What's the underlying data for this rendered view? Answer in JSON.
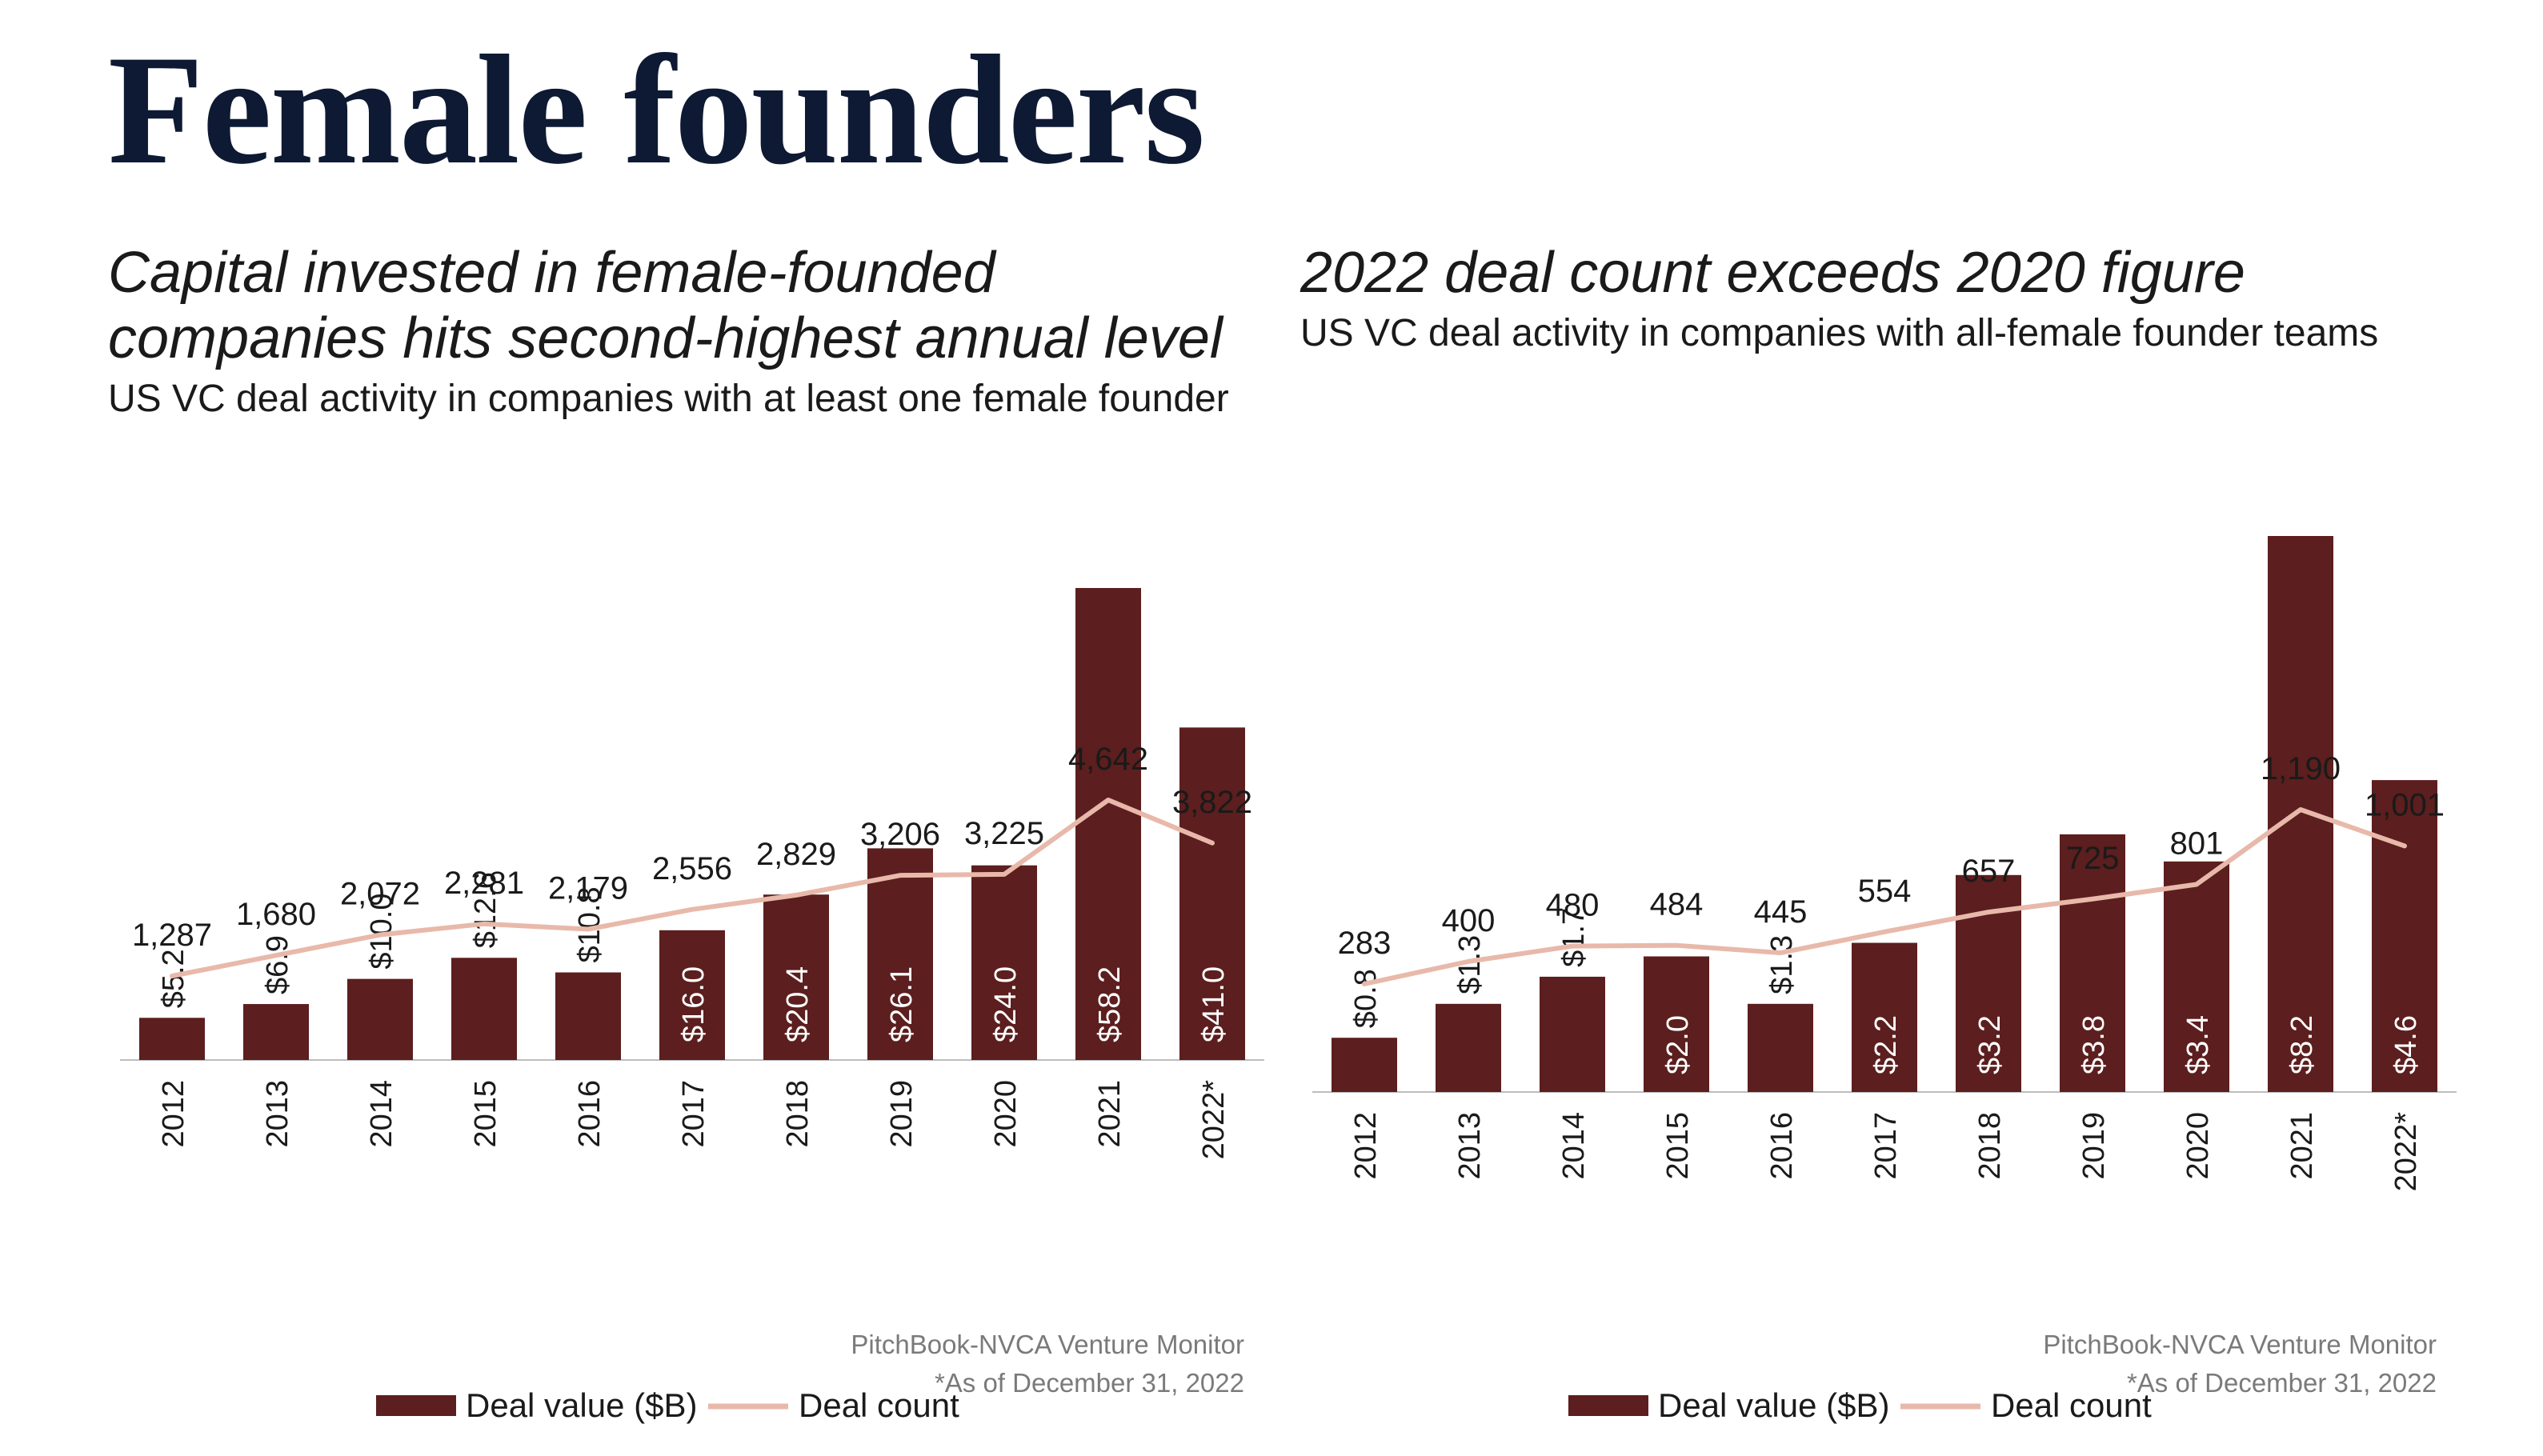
{
  "page": {
    "title": "Female founders"
  },
  "colors": {
    "bar": "#5c1e1e",
    "line": "#e8b9aa",
    "text": "#1a1a1a",
    "title": "#0e1a33",
    "axis": "#bdbdbd"
  },
  "chart_data": [
    {
      "type": "bar",
      "title": "Capital invested in female-founded companies hits second-highest annual level",
      "subtitle": "US VC deal activity in companies with at least one female founder",
      "categories": [
        "2012",
        "2013",
        "2014",
        "2015",
        "2016",
        "2017",
        "2018",
        "2019",
        "2020",
        "2021",
        "2022*"
      ],
      "series": [
        {
          "name": "Deal value ($B)",
          "type": "bar",
          "values": [
            5.2,
            6.9,
            10.0,
            12.6,
            10.8,
            16.0,
            20.4,
            26.1,
            24.0,
            58.2,
            41.0
          ],
          "labels": [
            "$5.2",
            "$6.9",
            "$10.0",
            "$12.6",
            "$10.8",
            "$16.0",
            "$20.4",
            "$26.1",
            "$24.0",
            "$58.2",
            "$41.0"
          ]
        },
        {
          "name": "Deal count",
          "type": "line",
          "values": [
            1287,
            1680,
            2072,
            2281,
            2179,
            2556,
            2829,
            3206,
            3225,
            4642,
            3822
          ],
          "labels": [
            "1,287",
            "1,680",
            "2,072",
            "2,281",
            "2,179",
            "2,556",
            "2,829",
            "3,206",
            "3,225",
            "4,642",
            "3,822"
          ]
        }
      ],
      "legend": [
        "Deal value ($B)",
        "Deal count"
      ],
      "source": "PitchBook-NVCA Venture Monitor",
      "note": "*As of December 31, 2022"
    },
    {
      "type": "bar",
      "title": "2022 deal count exceeds 2020 figure",
      "subtitle": "US VC deal activity in companies with all-female founder teams",
      "categories": [
        "2012",
        "2013",
        "2014",
        "2015",
        "2016",
        "2017",
        "2018",
        "2019",
        "2020",
        "2021",
        "2022*"
      ],
      "series": [
        {
          "name": "Deal value ($B)",
          "type": "bar",
          "values": [
            0.8,
            1.3,
            1.7,
            2.0,
            1.3,
            2.2,
            3.2,
            3.8,
            3.4,
            8.2,
            4.6
          ],
          "labels": [
            "$0.8",
            "$1.3",
            "$1.7",
            "$2.0",
            "$1.3",
            "$2.2",
            "$3.2",
            "$3.8",
            "$3.4",
            "$8.2",
            "$4.6"
          ]
        },
        {
          "name": "Deal count",
          "type": "line",
          "values": [
            283,
            400,
            480,
            484,
            445,
            554,
            657,
            725,
            801,
            1190,
            1001
          ],
          "labels": [
            "283",
            "400",
            "480",
            "484",
            "445",
            "554",
            "657",
            "725",
            "801",
            "1,190",
            "1,001"
          ]
        }
      ],
      "legend": [
        "Deal value ($B)",
        "Deal count"
      ],
      "source": "PitchBook-NVCA Venture Monitor",
      "note": "*As of December 31, 2022"
    }
  ]
}
